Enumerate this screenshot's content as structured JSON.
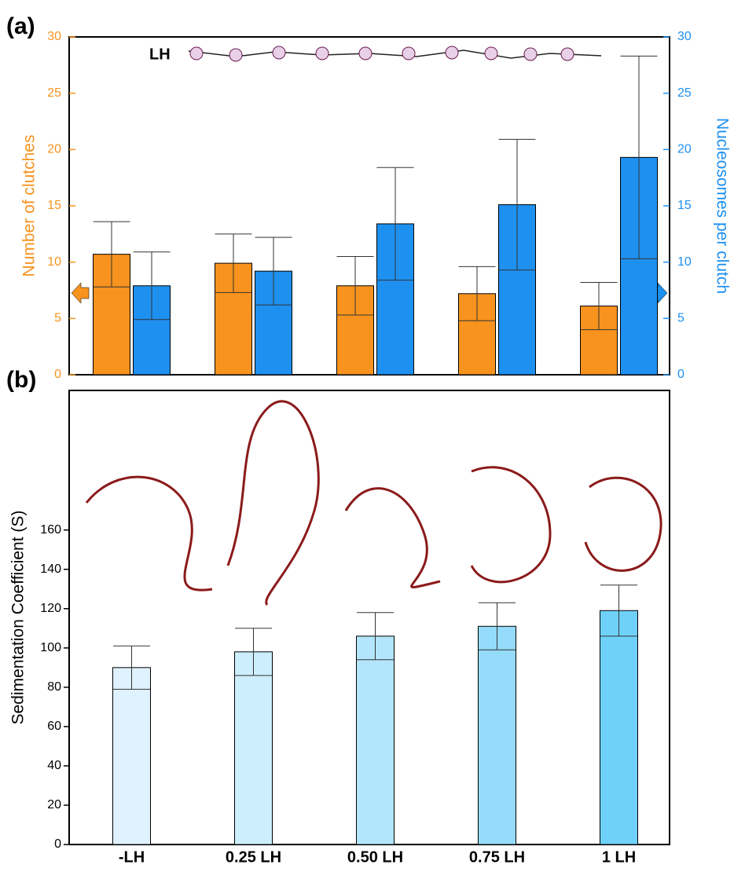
{
  "chart_data": [
    {
      "type": "bar",
      "panel_label": "(a)",
      "annotation": "LH",
      "categories": [
        null,
        null,
        null,
        null,
        null
      ],
      "ylabel": "Number of clutches",
      "y2label": "Nucleosomes per clutch",
      "ylim": [
        0,
        30
      ],
      "yticks": [
        0,
        5,
        10,
        15,
        20,
        25,
        30
      ],
      "y2lim": [
        0,
        30
      ],
      "y2ticks": [
        0,
        5,
        10,
        15,
        20,
        25,
        30
      ],
      "series": [
        {
          "color": "#f7931e",
          "values": [
            10.7,
            9.9,
            7.9,
            7.2,
            6.1
          ],
          "errors": [
            2.9,
            2.6,
            2.6,
            2.4,
            2.1
          ]
        },
        {
          "color": "#1e90f0",
          "axis": "y2",
          "values": [
            7.9,
            9.2,
            13.4,
            15.1,
            19.3
          ],
          "errors": [
            3.0,
            3.0,
            5.0,
            5.8,
            9.0
          ]
        }
      ]
    },
    {
      "type": "bar",
      "panel_label": "(b)",
      "categories": [
        "-LH",
        "0.25 LH",
        "0.50 LH",
        "0.75 LH",
        "1 LH"
      ],
      "ylabel": "Sedimentation Coefficient (S)",
      "ylim": [
        0,
        231
      ],
      "yticks": [
        0,
        20,
        40,
        60,
        80,
        100,
        120,
        140,
        160
      ],
      "values": [
        90,
        98,
        106,
        111,
        119
      ],
      "errors": [
        11,
        12,
        12,
        12,
        13
      ],
      "colors": [
        "#dff2fd",
        "#cdeefc",
        "#b3e6fb",
        "#94dcf9",
        "#6fd1f8"
      ]
    }
  ]
}
